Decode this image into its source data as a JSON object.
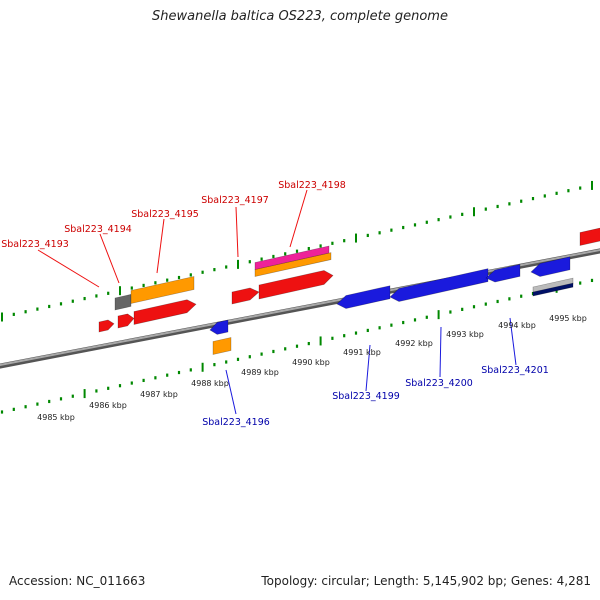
{
  "title": "Shewanella baltica OS223, complete genome",
  "footer": {
    "accession": "Accession: NC_011663",
    "summary": "Topology: circular; Length: 5,145,902 bp; Genes: 4,281"
  },
  "colors": {
    "forward_label": "#cc0000",
    "reverse_label": "#0000aa",
    "tick": "#008800",
    "backbone": "#7a7a7a",
    "forward_gene": "#ee1111",
    "reverse_gene": "#1a1add",
    "orange_gene": "#ff9900",
    "gray_gene": "#666666",
    "magenta_gene": "#ee2299",
    "navy_gene": "#001066",
    "silver_gene": "#bbbbbb"
  },
  "scale_labels": [
    "4985 kbp",
    "4986 kbp",
    "4987 kbp",
    "4988 kbp",
    "4989 kbp",
    "4990 kbp",
    "4991 kbp",
    "4992 kbp",
    "4993 kbp",
    "4994 kbp",
    "4995 kbp"
  ],
  "forward_gene_labels": [
    "Sbal223_4193",
    "Sbal223_4194",
    "Sbal223_4195",
    "Sbal223_4197",
    "Sbal223_4198"
  ],
  "reverse_gene_labels": [
    "Sbal223_4196",
    "Sbal223_4199",
    "Sbal223_4200",
    "Sbal223_4201"
  ]
}
